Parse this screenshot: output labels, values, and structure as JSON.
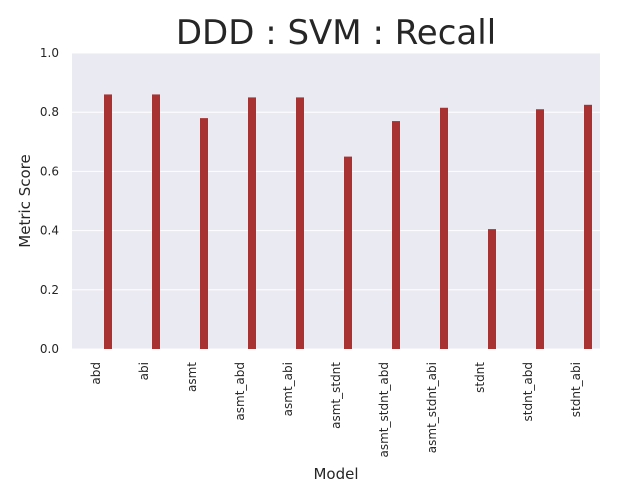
{
  "chart_data": {
    "type": "bar",
    "title": "DDD : SVM : Recall",
    "xlabel": "Model",
    "ylabel": "Metric Score",
    "categories": [
      "abd",
      "abi",
      "asmt",
      "asmt_abd",
      "asmt_abi",
      "asmt_stdnt",
      "asmt_stdnt_abd",
      "asmt_stdnt_abi",
      "stdnt",
      "stdnt_abd",
      "stdnt_abi"
    ],
    "series": [
      {
        "values": [
          0.86,
          0.86,
          0.78,
          0.85,
          0.85,
          0.65,
          0.77,
          0.815,
          0.405,
          0.81,
          0.825
        ],
        "color": "#a83232"
      }
    ],
    "ylim": [
      0,
      1.0
    ],
    "yticks": [
      "0.0",
      "0.2",
      "0.4",
      "0.6",
      "0.8",
      "1.0"
    ],
    "grid": true,
    "legend": "none",
    "background_color": "#eaeaf2",
    "grid_color": "#ffffff"
  }
}
